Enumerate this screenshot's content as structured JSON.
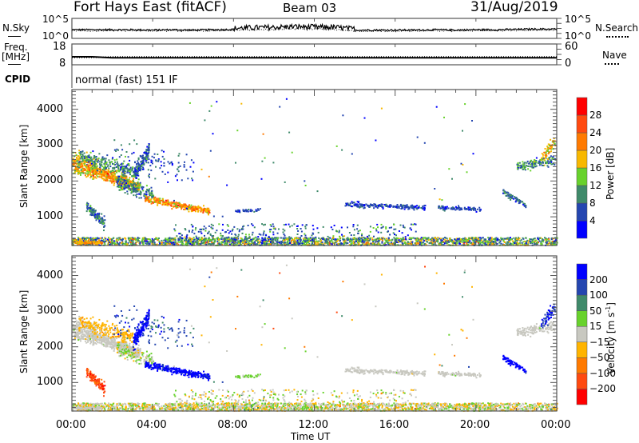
{
  "header": {
    "station": "Fort Hays East (fitACF)",
    "beam": "Beam 03",
    "date": "31/Aug/2019"
  },
  "side_labels": {
    "nsky": "N.Sky",
    "nsearch": "N.Search",
    "freq1": "Freq.",
    "freq2": "[MHz]",
    "nave": "Nave",
    "cpid": "CPID",
    "cpid_value": "normal (fast) 151 IF"
  },
  "mini_axes": {
    "nsky_left": [
      "10^5",
      "10^0"
    ],
    "nsky_right": [
      "10^5",
      "10^0"
    ],
    "freq_left": [
      "18",
      "8"
    ],
    "nave_right": [
      "60",
      "0"
    ]
  },
  "chart_data": {
    "type": "scatter",
    "xlabel": "Time UT",
    "xlim": [
      0,
      24
    ],
    "xticks": [
      0,
      4,
      8,
      12,
      16,
      20,
      24
    ],
    "xtick_labels": [
      "00:00",
      "04:00",
      "08:00",
      "12:00",
      "16:00",
      "20:00",
      "00:00"
    ],
    "panels": [
      {
        "name": "power",
        "ylabel": "Slant Range [km]",
        "ylim": [
          200,
          4550
        ],
        "yticks": [
          1000,
          2000,
          3000,
          4000
        ],
        "ytick_labels": [
          "1000",
          "2000",
          "3000",
          "4000"
        ],
        "colorbar": {
          "label": "Power [dB]",
          "bounds": [
            4,
            8,
            12,
            16,
            20,
            24,
            28
          ],
          "tick_labels": [
            "4",
            "8",
            "12",
            "16",
            "20",
            "24",
            "28"
          ],
          "colors": [
            "#0000ff",
            "#2446b0",
            "#3f8a6a",
            "#68d22c",
            "#f8b800",
            "#ff7a00",
            "#ff4a10",
            "#ff0000"
          ]
        }
      },
      {
        "name": "velocity",
        "ylabel": "Slant Range [km]",
        "ylim": [
          200,
          4550
        ],
        "yticks": [
          1000,
          2000,
          3000,
          4000
        ],
        "ytick_labels": [
          "1000",
          "2000",
          "3000",
          "4000"
        ],
        "colorbar": {
          "label": "Velocity [m s-1]",
          "label_main": "Velocity [m s",
          "label_sup": "-1",
          "label_end": "]",
          "bounds": [
            -200,
            -100,
            -50,
            -15,
            15,
            50,
            100,
            200
          ],
          "tick_labels": [
            "-200",
            "-100",
            "-50",
            "-15",
            "15",
            "50",
            "100",
            "200"
          ],
          "colors": [
            "#ff0000",
            "#ff4a10",
            "#ff7a00",
            "#ffb400",
            "#c8c8c0",
            "#68d22c",
            "#3f8a6a",
            "#2446b0",
            "#0000ff"
          ]
        }
      }
    ],
    "echo_regions": [
      {
        "t": [
          0,
          1.2
        ],
        "r": [
          2500,
          2300
        ],
        "sd": 200,
        "n": 260,
        "p": 18,
        "pj": 6,
        "v": 0,
        "vj": 10
      },
      {
        "t": [
          1.0,
          3.3
        ],
        "r": [
          2300,
          1850
        ],
        "sd": 120,
        "n": 420,
        "p": 20,
        "pj": 6,
        "v": 0,
        "vj": 10
      },
      {
        "t": [
          0.3,
          3.0
        ],
        "r": [
          2700,
          2250
        ],
        "sd": 150,
        "n": 240,
        "p": 10,
        "pj": 5,
        "v": -30,
        "vj": 15
      },
      {
        "t": [
          2.2,
          4.0
        ],
        "r": [
          1950,
          1600
        ],
        "sd": 140,
        "n": 200,
        "p": 9,
        "pj": 5,
        "v": 10,
        "vj": 30
      },
      {
        "t": [
          3.0,
          3.8
        ],
        "r": [
          2100,
          2900
        ],
        "sd": 150,
        "n": 160,
        "p": 8,
        "pj": 5,
        "v": 250,
        "vj": 40
      },
      {
        "t": [
          3.6,
          6.8
        ],
        "r": [
          1500,
          1150
        ],
        "sd": 60,
        "n": 320,
        "p": 21,
        "pj": 6,
        "v": 250,
        "vj": 60
      },
      {
        "t": [
          0.7,
          1.6
        ],
        "r": [
          1300,
          800
        ],
        "sd": 100,
        "n": 120,
        "p": 8,
        "pj": 4,
        "v": -150,
        "vj": 60
      },
      {
        "t": [
          2.0,
          6.0
        ],
        "r": [
          2800,
          2300
        ],
        "sd": 300,
        "n": 110,
        "p": 6,
        "pj": 4,
        "v": 150,
        "vj": 60
      },
      {
        "t": [
          8.0,
          9.3
        ],
        "r": [
          1150,
          1200
        ],
        "sd": 30,
        "n": 40,
        "p": 6,
        "pj": 3,
        "v": 20,
        "vj": 20
      },
      {
        "t": [
          13.5,
          17.5
        ],
        "r": [
          1350,
          1250
        ],
        "sd": 50,
        "n": 200,
        "p": 6,
        "pj": 3,
        "v": 0,
        "vj": 10
      },
      {
        "t": [
          18.0,
          20.2
        ],
        "r": [
          1250,
          1200
        ],
        "sd": 40,
        "n": 90,
        "p": 6,
        "pj": 3,
        "v": 0,
        "vj": 10
      },
      {
        "t": [
          22.0,
          23.9
        ],
        "r": [
          2400,
          2600
        ],
        "sd": 100,
        "n": 150,
        "p": 10,
        "pj": 5,
        "v": 0,
        "vj": 10
      },
      {
        "t": [
          23.2,
          23.9
        ],
        "r": [
          2600,
          3100
        ],
        "sd": 120,
        "n": 60,
        "p": 18,
        "pj": 6,
        "v": 200,
        "vj": 50
      },
      {
        "t": [
          21.3,
          22.5
        ],
        "r": [
          1700,
          1300
        ],
        "sd": 60,
        "n": 70,
        "p": 8,
        "pj": 4,
        "v": 250,
        "vj": 40
      },
      {
        "t": [
          5,
          20
        ],
        "r": [
          1000,
          4300
        ],
        "uniform": true,
        "n": 60,
        "p": 8,
        "pj": 8,
        "v": 0,
        "vj": 100
      },
      {
        "t": [
          0,
          24
        ],
        "r": [
          200,
          420
        ],
        "uniform": true,
        "n": 2200,
        "p": 12,
        "pj": 8,
        "v": 0,
        "vj": 35
      },
      {
        "t": [
          5,
          17
        ],
        "r": [
          350,
          800
        ],
        "uniform": true,
        "n": 300,
        "p": 8,
        "pj": 6,
        "v": 0,
        "vj": 35
      },
      {
        "t": [
          0,
          1.5
        ],
        "r": [
          250,
          310
        ],
        "uniform": true,
        "n": 80,
        "p": 20,
        "pj": 3,
        "v": 0,
        "vj": 10
      }
    ],
    "nsky_log10": [
      2.1,
      2.1,
      2.1,
      2.1,
      2.0,
      2.1,
      2.0,
      2.1,
      2.2,
      2.4,
      2.5,
      2.7,
      2.6,
      2.5,
      2.0,
      2.0,
      2.0,
      2.0,
      2.1,
      2.0,
      2.1,
      2.1,
      2.2,
      2.3,
      2.3
    ],
    "freq_mhz": [
      11.8,
      11.8,
      11.2,
      11.2,
      11.2,
      11.2,
      11.2,
      11.2,
      11.2,
      11.2,
      11.2,
      11.2,
      11.2,
      11.2,
      11.2,
      11.2,
      11.2,
      11.2,
      11.2,
      11.2,
      11.2,
      11.2,
      11.2,
      11.2,
      11.2
    ],
    "nave": [
      20,
      20,
      23,
      23,
      23,
      23,
      23,
      23,
      23,
      23,
      23,
      23,
      23,
      23,
      23,
      23,
      23,
      23,
      23,
      23,
      23,
      23,
      23,
      23,
      23
    ]
  }
}
